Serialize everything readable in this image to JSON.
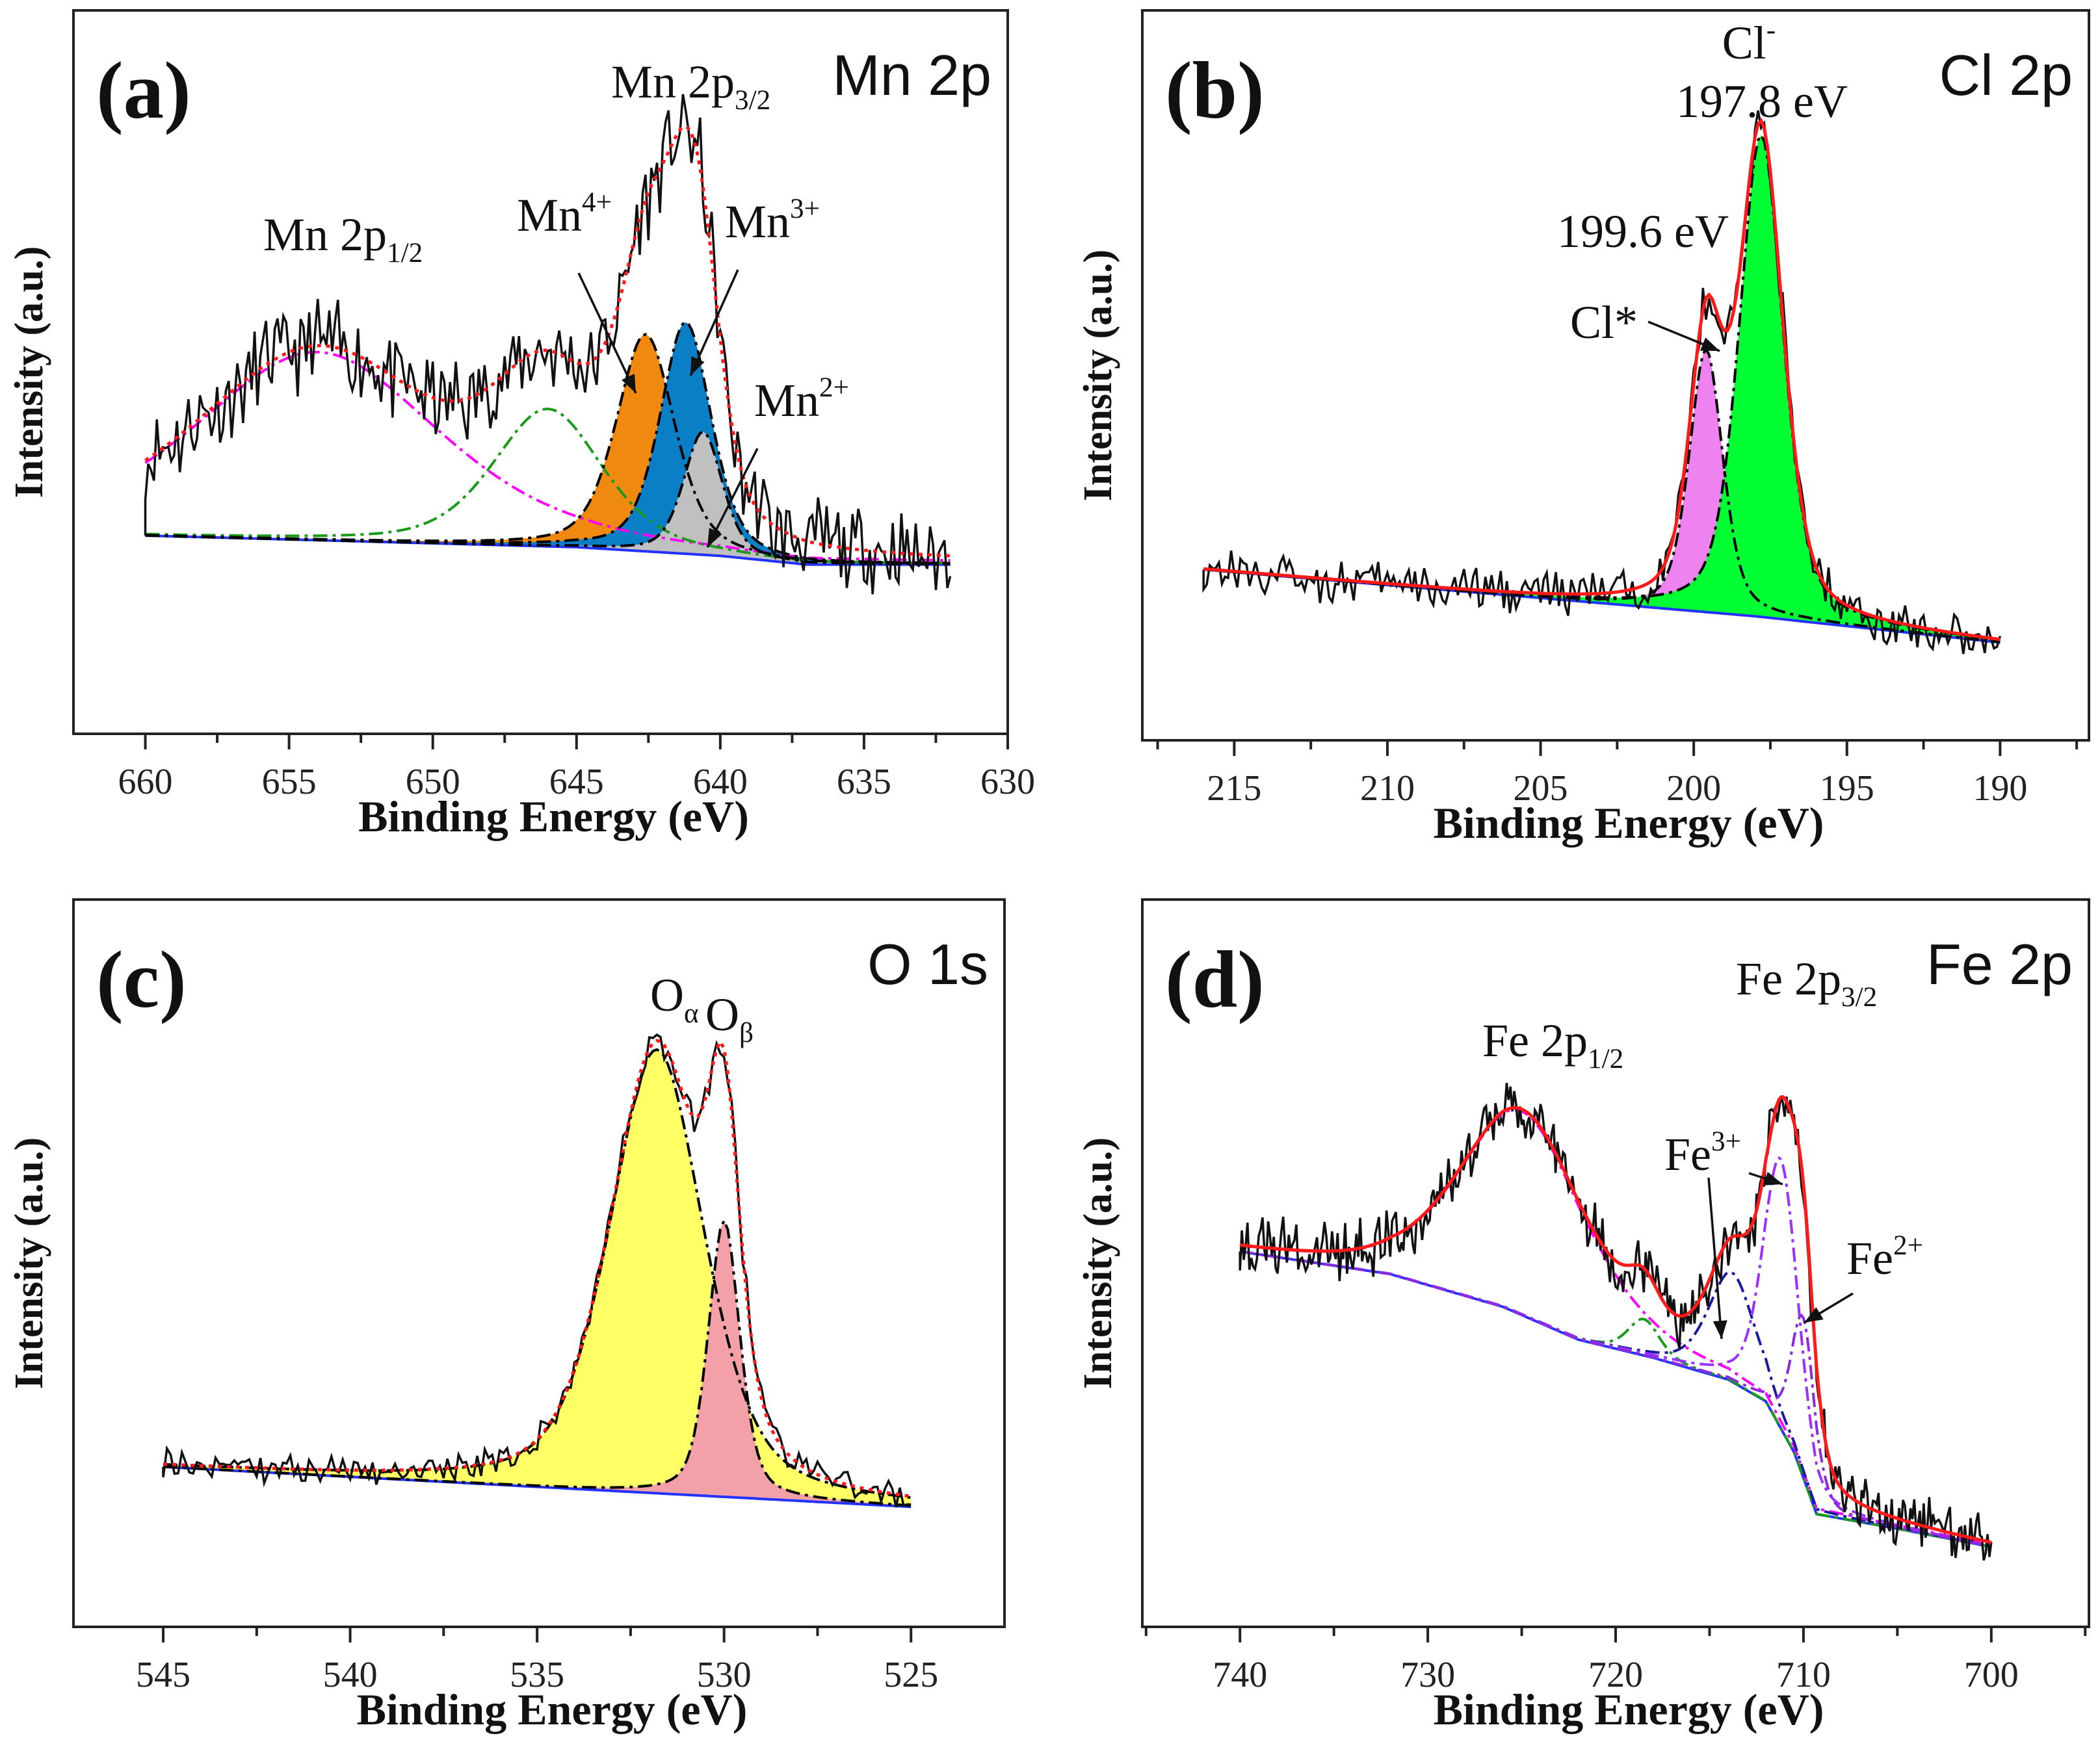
{
  "chart_data": [
    {
      "type": "line",
      "panel_label": "(a)",
      "title": "Mn 2p",
      "xlabel": "Binding Energy (eV)",
      "ylabel": "Intensity (a.u.)",
      "xlim": [
        662.5,
        630
      ],
      "ylim": [
        0,
        100
      ],
      "x_ticks": [
        660,
        655,
        650,
        645,
        640,
        635,
        630
      ],
      "x_tick_labels": [
        "660",
        "655",
        "650",
        "645",
        "640",
        "635",
        "630"
      ],
      "data_range": [
        660,
        632
      ],
      "background": [
        [
          660,
          27.4
        ],
        [
          645,
          25.8
        ],
        [
          640,
          24.6
        ],
        [
          637,
          23.4
        ],
        [
          632,
          23.4
        ]
      ],
      "noise": 5.5,
      "envelope_style": "red-dotted",
      "peaks": [
        {
          "name": "Mn 2p1/2",
          "center": 654,
          "height": 26,
          "fwhm": 10,
          "color": "#ff00ff",
          "fill": null
        },
        {
          "name": "satellite",
          "center": 646,
          "height": 19,
          "fwhm": 4.5,
          "color": "#1a9a1a",
          "fill": null
        },
        {
          "name": "Mn4+",
          "center": 642.6,
          "height": 30,
          "fwhm": 2.4,
          "color": "#000000",
          "fill": "#f0890f"
        },
        {
          "name": "Mn3+",
          "center": 641.2,
          "height": 32,
          "fwhm": 2.1,
          "color": "#000000",
          "fill": "#0a7fc6"
        },
        {
          "name": "Mn2+",
          "center": 640.6,
          "height": 17,
          "fwhm": 1.6,
          "color": "#000000",
          "fill": "#c0c0c0"
        }
      ],
      "annotations": [
        {
          "text": "Mn 2p",
          "sub": "3/2",
          "sup": ""
        },
        {
          "text": "Mn 2p",
          "sub": "1/2",
          "sup": ""
        },
        {
          "text": "Mn",
          "sub": "",
          "sup": "4+"
        },
        {
          "text": "Mn",
          "sub": "",
          "sup": "3+"
        },
        {
          "text": "Mn",
          "sub": "",
          "sup": "2+"
        }
      ]
    },
    {
      "type": "line",
      "panel_label": "(b)",
      "title": "Cl 2p",
      "xlabel": "Binding Energy (eV)",
      "ylabel": "Intensity (a.u.)",
      "xlim": [
        218,
        187.1
      ],
      "ylim": [
        0,
        100
      ],
      "x_ticks": [
        215,
        210,
        205,
        200,
        195,
        190
      ],
      "x_tick_labels": [
        "215",
        "210",
        "205",
        "200",
        "195",
        "190"
      ],
      "data_range": [
        216,
        190
      ],
      "background": [
        [
          216,
          23.4
        ],
        [
          205,
          19.5
        ],
        [
          198,
          17
        ],
        [
          190,
          13.4
        ]
      ],
      "noise": 2.8,
      "envelope_style": "red-solid",
      "peaks": [
        {
          "name": "Cl*",
          "center": 199.6,
          "height": 36,
          "fwhm": 1.3,
          "color": "#000000",
          "fill": "#ee82ee"
        },
        {
          "name": "Cl-",
          "center": 197.8,
          "height": 66,
          "fwhm": 1.7,
          "color": "#000000",
          "fill": "#00ff33"
        }
      ],
      "annotations": [
        {
          "text": "Cl",
          "sub": "",
          "sup": "-"
        },
        {
          "text": "197.8 eV",
          "sub": "",
          "sup": ""
        },
        {
          "text": "199.6 eV",
          "sub": "",
          "sup": ""
        },
        {
          "text": "Cl*",
          "sub": "",
          "sup": ""
        }
      ]
    },
    {
      "type": "line",
      "panel_label": "(c)",
      "title": "O 1s",
      "xlabel": "Binding Energy (eV)",
      "ylabel": "Intensity (a.u.)",
      "xlim": [
        547.4,
        522.5
      ],
      "ylim": [
        0,
        100
      ],
      "x_ticks": [
        545,
        540,
        535,
        530,
        525
      ],
      "x_tick_labels": [
        "545",
        "540",
        "535",
        "530",
        "525"
      ],
      "data_range": [
        545,
        525
      ],
      "background": [
        [
          545,
          22
        ],
        [
          525,
          16.5
        ]
      ],
      "noise": 1.8,
      "envelope_style": "red-dotted",
      "peaks": [
        {
          "name": "Oα",
          "center": 531.8,
          "height": 61,
          "fwhm": 3.0,
          "color": "#000000",
          "fill": "#ffff66"
        },
        {
          "name": "Oβ",
          "center": 530.0,
          "height": 38,
          "fwhm": 1.0,
          "color": "#000000",
          "fill": "#f4a0a8"
        }
      ],
      "annotations": [
        {
          "text": "O",
          "sub": "α",
          "sup": ""
        },
        {
          "text": "O",
          "sub": "β",
          "sup": ""
        }
      ]
    },
    {
      "type": "line",
      "panel_label": "(d)",
      "title": "Fe 2p",
      "xlabel": "Binding Energy (eV)",
      "ylabel": "Intensity (a.u.)",
      "xlim": [
        745.2,
        694.8
      ],
      "ylim": [
        0,
        100
      ],
      "x_ticks": [
        740,
        730,
        720,
        710,
        700
      ],
      "x_tick_labels": [
        "740",
        "730",
        "720",
        "710",
        "700"
      ],
      "data_range": [
        740,
        700
      ],
      "background": [
        [
          740,
          51.6
        ],
        [
          732,
          48.5
        ],
        [
          726,
          44
        ],
        [
          722,
          39.5
        ],
        [
          718,
          37
        ],
        [
          714,
          34
        ],
        [
          712,
          31
        ],
        [
          710.5,
          24
        ],
        [
          709.3,
          15.5
        ],
        [
          705,
          13.5
        ],
        [
          700,
          11
        ]
      ],
      "noise": 3.5,
      "envelope_style": "red-solid",
      "peaks": [
        {
          "name": "Fe 2p1/2",
          "center": 725,
          "height": 28,
          "fwhm": 8,
          "color": "#ff00ff",
          "fill": null
        },
        {
          "name": "satellite",
          "center": 718.5,
          "height": 5,
          "fwhm": 2,
          "color": "#1a9a1a",
          "fill": null
        },
        {
          "name": "satellite-2",
          "center": 713.8,
          "height": 15,
          "fwhm": 3,
          "color": "#1a1aa0",
          "fill": null
        },
        {
          "name": "Fe3+",
          "center": 711.2,
          "height": 37,
          "fwhm": 2.2,
          "color": "#9b30ff",
          "fill": null
        },
        {
          "name": "Fe2+",
          "center": 710.0,
          "height": 22,
          "fwhm": 1.5,
          "color": "#8a2be2",
          "fill": null
        }
      ],
      "annotations": [
        {
          "text": "Fe 2p",
          "sub": "1/2",
          "sup": ""
        },
        {
          "text": "Fe 2p",
          "sub": "3/2",
          "sup": ""
        },
        {
          "text": "Fe",
          "sub": "",
          "sup": "3+"
        },
        {
          "text": "Fe",
          "sub": "",
          "sup": "2+"
        }
      ]
    }
  ]
}
